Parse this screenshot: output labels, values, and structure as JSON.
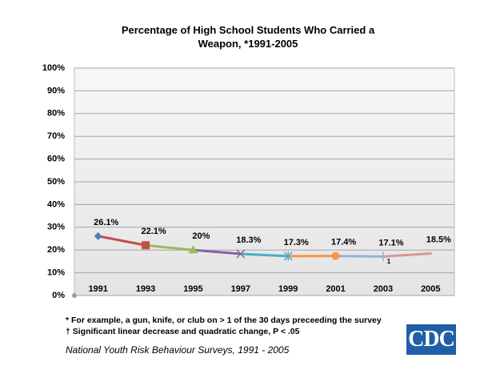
{
  "chart_data": {
    "type": "line",
    "title": "Percentage of High School Students Who Carried a Weapon, *1991-2005",
    "categories": [
      "1991",
      "1993",
      "1995",
      "1997",
      "1999",
      "2001",
      "2003",
      "2005"
    ],
    "values": [
      26.1,
      22.1,
      20,
      18.3,
      17.3,
      17.4,
      17.1,
      18.5
    ],
    "value_labels": [
      "26.1%",
      "22.1%",
      "20%",
      "18.3%",
      "17.3%",
      "17.4%",
      "17.1%",
      "18.5%"
    ],
    "segment_colors": [
      "#c0504d",
      "#9bbb59",
      "#8064a2",
      "#4bacc6",
      "#f79646",
      "#95b3d7",
      "#d99694"
    ],
    "markers": [
      "diamond",
      "square",
      "triangle",
      "x",
      "star",
      "circle",
      "plus",
      "none"
    ],
    "marker_colors": [
      "#4f81bd",
      "#c0504d",
      "#9bbb59",
      "#8064a2",
      "#4bacc6",
      "#f79646",
      "#95b3d7",
      "#d99694"
    ],
    "ylim": [
      0,
      100
    ],
    "yticks": [
      {
        "value": 0,
        "label": "0%"
      },
      {
        "value": 10,
        "label": "10%"
      },
      {
        "value": 20,
        "label": "20%"
      },
      {
        "value": 30,
        "label": "30%"
      },
      {
        "value": 40,
        "label": "40%"
      },
      {
        "value": 50,
        "label": "50%"
      },
      {
        "value": 60,
        "label": "60%"
      },
      {
        "value": 70,
        "label": "70%"
      },
      {
        "value": 80,
        "label": "80%"
      },
      {
        "value": 90,
        "label": "90%"
      },
      {
        "value": 100,
        "label": "100%"
      }
    ],
    "grid": true,
    "annotation": "1",
    "footnotes": [
      "* For example, a gun, knife, or club on > 1 of the 30 days preceeding the survey",
      "† Significant linear decrease and quadratic change, P < .05"
    ],
    "source": "National Youth Risk Behaviour Surveys, 1991 - 2005",
    "logo": "CDC"
  }
}
